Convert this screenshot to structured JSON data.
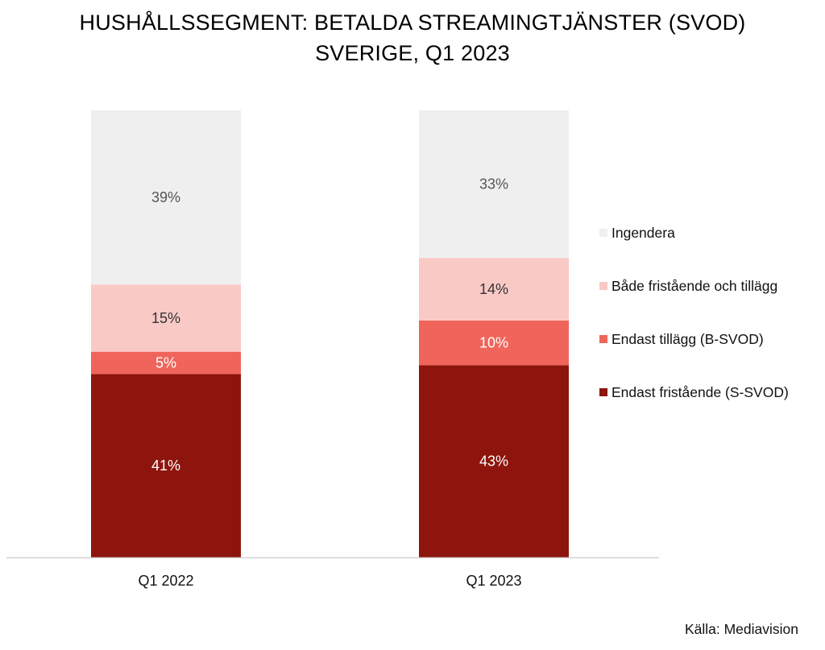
{
  "chart_data": {
    "type": "bar",
    "stacked": true,
    "title": "HUSHÅLLSSEGMENT: BETALDA STREAMINGTJÄNSTER (SVOD)",
    "subtitle": "SVERIGE, Q1 2023",
    "categories": [
      "Q1 2022",
      "Q1 2023"
    ],
    "series": [
      {
        "name": "Endast fristående (S-SVOD)",
        "values": [
          41,
          43
        ],
        "labels": [
          "41%",
          "43%"
        ],
        "color": "#8e150d",
        "label_color": "#ffffff"
      },
      {
        "name": "Endast tillägg (B-SVOD)",
        "values": [
          5,
          10
        ],
        "labels": [
          "5%",
          "10%"
        ],
        "color": "#f0655b",
        "label_color": "#ffffff"
      },
      {
        "name": "Både fristående och tillägg",
        "values": [
          15,
          14
        ],
        "labels": [
          "15%",
          "14%"
        ],
        "color": "#f9c9c6",
        "label_color": "#333333"
      },
      {
        "name": "Ingendera",
        "values": [
          39,
          33
        ],
        "labels": [
          "39%",
          "33%"
        ],
        "color": "#efefef",
        "label_color": "#555555"
      }
    ],
    "legend_order": [
      3,
      2,
      1,
      0
    ],
    "legend_position": "right",
    "grid": false,
    "ylim": [
      0,
      100
    ],
    "source": "Källa: Mediavision"
  }
}
